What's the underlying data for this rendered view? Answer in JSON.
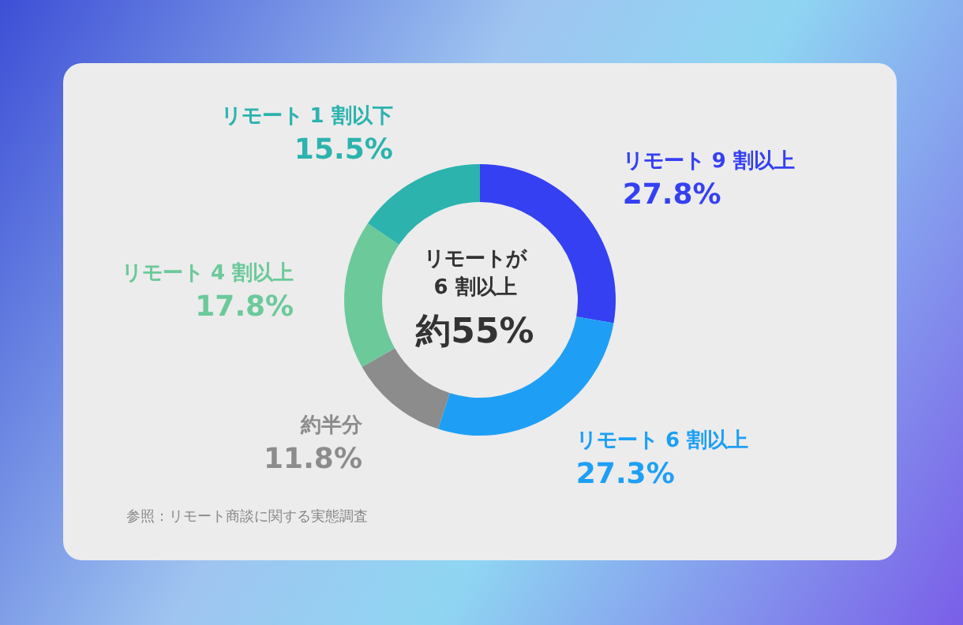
{
  "chart_data": {
    "type": "donut",
    "categories": [
      "リモート 9 割以上",
      "リモート 6 割以上",
      "約半分",
      "リモート 4 割以上",
      "リモート 1 割以下"
    ],
    "values": [
      27.8,
      27.3,
      11.8,
      17.8,
      15.5
    ],
    "colors": [
      "#3540f2",
      "#1e9ff5",
      "#8c8c8c",
      "#6cc99a",
      "#2cb3ae"
    ],
    "value_labels": [
      "27.8%",
      "27.3%",
      "11.8%",
      "17.8%",
      "15.5%"
    ],
    "annotations": [
      "リモートが",
      "6 割以上",
      "約55%",
      "参照：リモート商談に関する実態調査"
    ]
  }
}
